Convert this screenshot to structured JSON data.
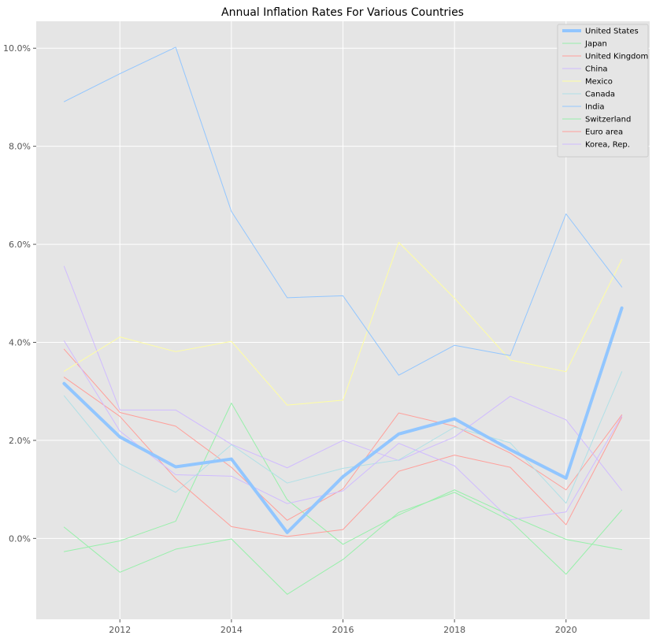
{
  "chart_data": {
    "type": "line",
    "title": "Annual Inflation Rates For Various Countries",
    "xlabel": "",
    "ylabel": "",
    "x": [
      2011,
      2012,
      2013,
      2014,
      2015,
      2016,
      2017,
      2018,
      2019,
      2020,
      2021
    ],
    "xlim": [
      2010.5,
      2021.5
    ],
    "ylim": [
      -1.65,
      10.55
    ],
    "x_ticks": [
      2012,
      2014,
      2016,
      2018,
      2020
    ],
    "x_tick_labels": [
      "2012",
      "2014",
      "2016",
      "2018",
      "2020"
    ],
    "y_ticks": [
      0,
      2,
      4,
      6,
      8,
      10
    ],
    "y_tick_labels": [
      "0.0%",
      "2.0%",
      "4.0%",
      "6.0%",
      "8.0%",
      "10.0%"
    ],
    "grid": true,
    "legend_position": "top-right",
    "background": "#e5e5e5",
    "series": [
      {
        "name": "United States",
        "color": "#92c6ff",
        "width": 4,
        "values": [
          3.16,
          2.07,
          1.46,
          1.62,
          0.12,
          1.26,
          2.13,
          2.44,
          1.81,
          1.23,
          4.7
        ]
      },
      {
        "name": "Japan",
        "color": "#97f0aa",
        "width": 1,
        "values": [
          -0.27,
          -0.05,
          0.35,
          2.76,
          0.79,
          -0.12,
          0.48,
          0.99,
          0.47,
          -0.02,
          -0.23
        ]
      },
      {
        "name": "United Kingdom",
        "color": "#ff9f9a",
        "width": 1,
        "values": [
          3.86,
          2.57,
          2.29,
          1.45,
          0.37,
          1.01,
          2.56,
          2.29,
          1.74,
          0.99,
          2.52
        ]
      },
      {
        "name": "China",
        "color": "#d0bbff",
        "width": 1,
        "values": [
          5.55,
          2.62,
          2.62,
          1.92,
          1.44,
          2.0,
          1.59,
          2.07,
          2.9,
          2.42,
          0.98
        ]
      },
      {
        "name": "Mexico",
        "color": "#fffea3",
        "width": 1,
        "values": [
          3.41,
          4.11,
          3.81,
          4.02,
          2.72,
          2.82,
          6.04,
          4.9,
          3.64,
          3.4,
          5.69
        ]
      },
      {
        "name": "Canada",
        "color": "#b0e0e6",
        "width": 1,
        "values": [
          2.91,
          1.52,
          0.94,
          1.91,
          1.13,
          1.43,
          1.6,
          2.27,
          1.95,
          0.72,
          3.4
        ]
      },
      {
        "name": "India",
        "color": "#92c6ff",
        "width": 1,
        "values": [
          8.91,
          9.48,
          10.02,
          6.67,
          4.91,
          4.95,
          3.33,
          3.94,
          3.73,
          6.62,
          5.13
        ]
      },
      {
        "name": "Switzerland",
        "color": "#97f0aa",
        "width": 1,
        "values": [
          0.23,
          -0.69,
          -0.22,
          -0.01,
          -1.14,
          -0.43,
          0.53,
          0.94,
          0.36,
          -0.73,
          0.58
        ]
      },
      {
        "name": "Euro area",
        "color": "#ff9f9a",
        "width": 1,
        "values": [
          3.29,
          2.49,
          1.22,
          0.24,
          0.04,
          0.18,
          1.37,
          1.7,
          1.45,
          0.28,
          2.47
        ]
      },
      {
        "name": "Korea, Rep.",
        "color": "#d0bbff",
        "width": 1,
        "values": [
          4.03,
          2.19,
          1.3,
          1.27,
          0.71,
          0.97,
          1.94,
          1.48,
          0.38,
          0.54,
          2.5
        ]
      }
    ]
  }
}
